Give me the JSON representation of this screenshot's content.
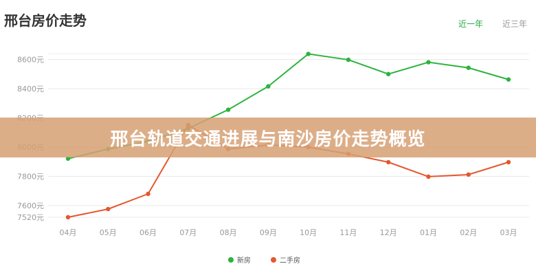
{
  "header": {
    "title": "邢台房价走势",
    "tabs": [
      {
        "label": "近一年",
        "active": true
      },
      {
        "label": "近三年",
        "active": false
      }
    ]
  },
  "banner": {
    "text": "邢台轨道交通进展与南沙房价走势概览"
  },
  "colors": {
    "accent": "#2aa845",
    "new": "#2bb43d",
    "second": "#e4572e"
  },
  "chart_data": {
    "type": "line",
    "categories": [
      "04月",
      "05月",
      "06月",
      "07月",
      "08月",
      "09月",
      "10月",
      "11月",
      "12月",
      "01月",
      "02月",
      "03月"
    ],
    "series": [
      {
        "name": "新房",
        "color": "#2bb43d",
        "values": [
          7921,
          7987,
          8040,
          8128,
          8256,
          8416,
          8638,
          8598,
          8500,
          8581,
          8543,
          8463
        ]
      },
      {
        "name": "二手房",
        "color": "#e4572e",
        "values": [
          7520,
          7576,
          7680,
          8152,
          7987,
          8015,
          8000,
          7954,
          7897,
          7798,
          7812,
          7897
        ]
      }
    ],
    "yticks": [
      7520,
      7600,
      7800,
      8000,
      8200,
      8400,
      8600
    ],
    "ytick_suffix": "元",
    "ylim": [
      7520,
      8640
    ],
    "grid": true,
    "legend": "bottom"
  }
}
